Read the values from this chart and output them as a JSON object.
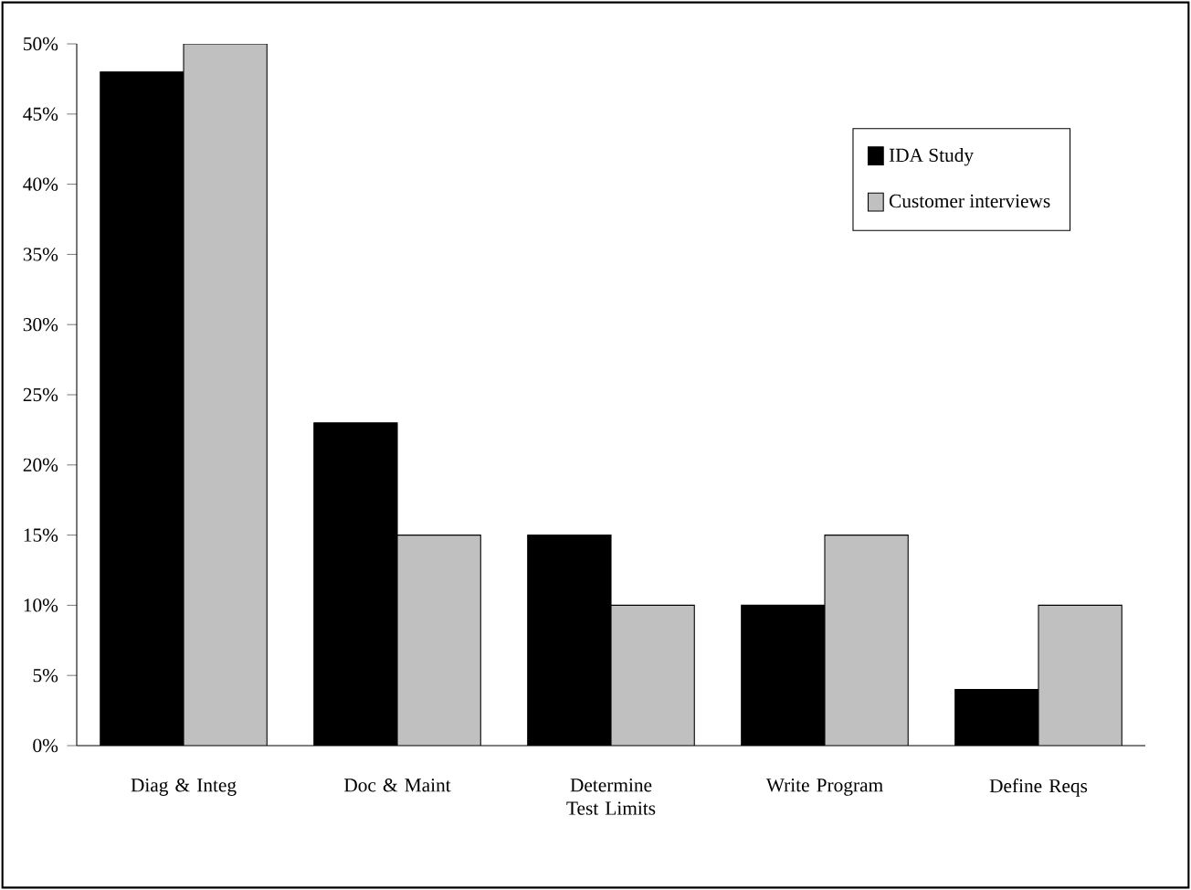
{
  "chart_data": {
    "type": "bar",
    "categories": [
      "Diag & Integ",
      "Doc & Maint",
      "Determine Test Limits",
      "Write Program",
      "Define Reqs"
    ],
    "series": [
      {
        "name": "IDA Study",
        "color": "#000000",
        "values": [
          48,
          23,
          15,
          10,
          4
        ]
      },
      {
        "name": "Customer interviews",
        "color": "#c0c0c0",
        "values": [
          50,
          15,
          10,
          15,
          10
        ]
      }
    ],
    "ylim": [
      0,
      50
    ],
    "yticks": [
      {
        "value": 0,
        "label": "0%"
      },
      {
        "value": 5,
        "label": "5%"
      },
      {
        "value": 10,
        "label": "10%"
      },
      {
        "value": 15,
        "label": "15%"
      },
      {
        "value": 20,
        "label": "20%"
      },
      {
        "value": 25,
        "label": "25%"
      },
      {
        "value": 30,
        "label": "30%"
      },
      {
        "value": 35,
        "label": "35%"
      },
      {
        "value": 40,
        "label": "40%"
      },
      {
        "value": 45,
        "label": "45%"
      },
      {
        "value": 50,
        "label": "50%"
      }
    ],
    "legend": "top right"
  }
}
